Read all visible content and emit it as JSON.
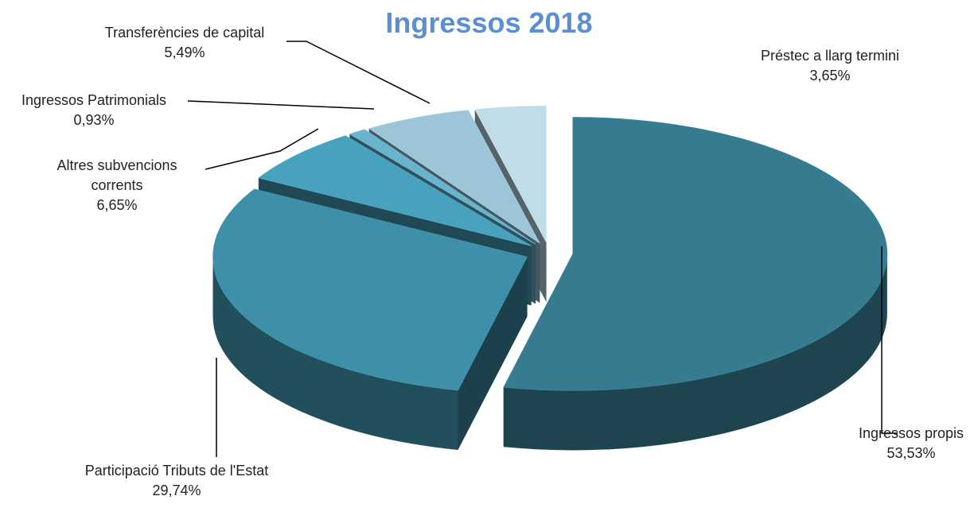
{
  "chart_data": {
    "type": "pie",
    "title": "Ingressos 2018",
    "categories": [
      "Ingressos propis",
      "Participació Tributs de l'Estat",
      "Altres subvencions corrents",
      "Ingressos Patrimonials",
      "Transferències de capital",
      "Préstec a llarg termini"
    ],
    "values": [
      53.53,
      29.74,
      6.65,
      0.93,
      5.49,
      3.65
    ],
    "value_labels": [
      "53,53%",
      "29,74%",
      "6,65%",
      "0,93%",
      "5,49%",
      "3,65%"
    ],
    "colors": [
      "#367b8f",
      "#3e8fa8",
      "#48a2bd",
      "#6ab3cc",
      "#9cc6d8",
      "#c0dce6"
    ]
  }
}
